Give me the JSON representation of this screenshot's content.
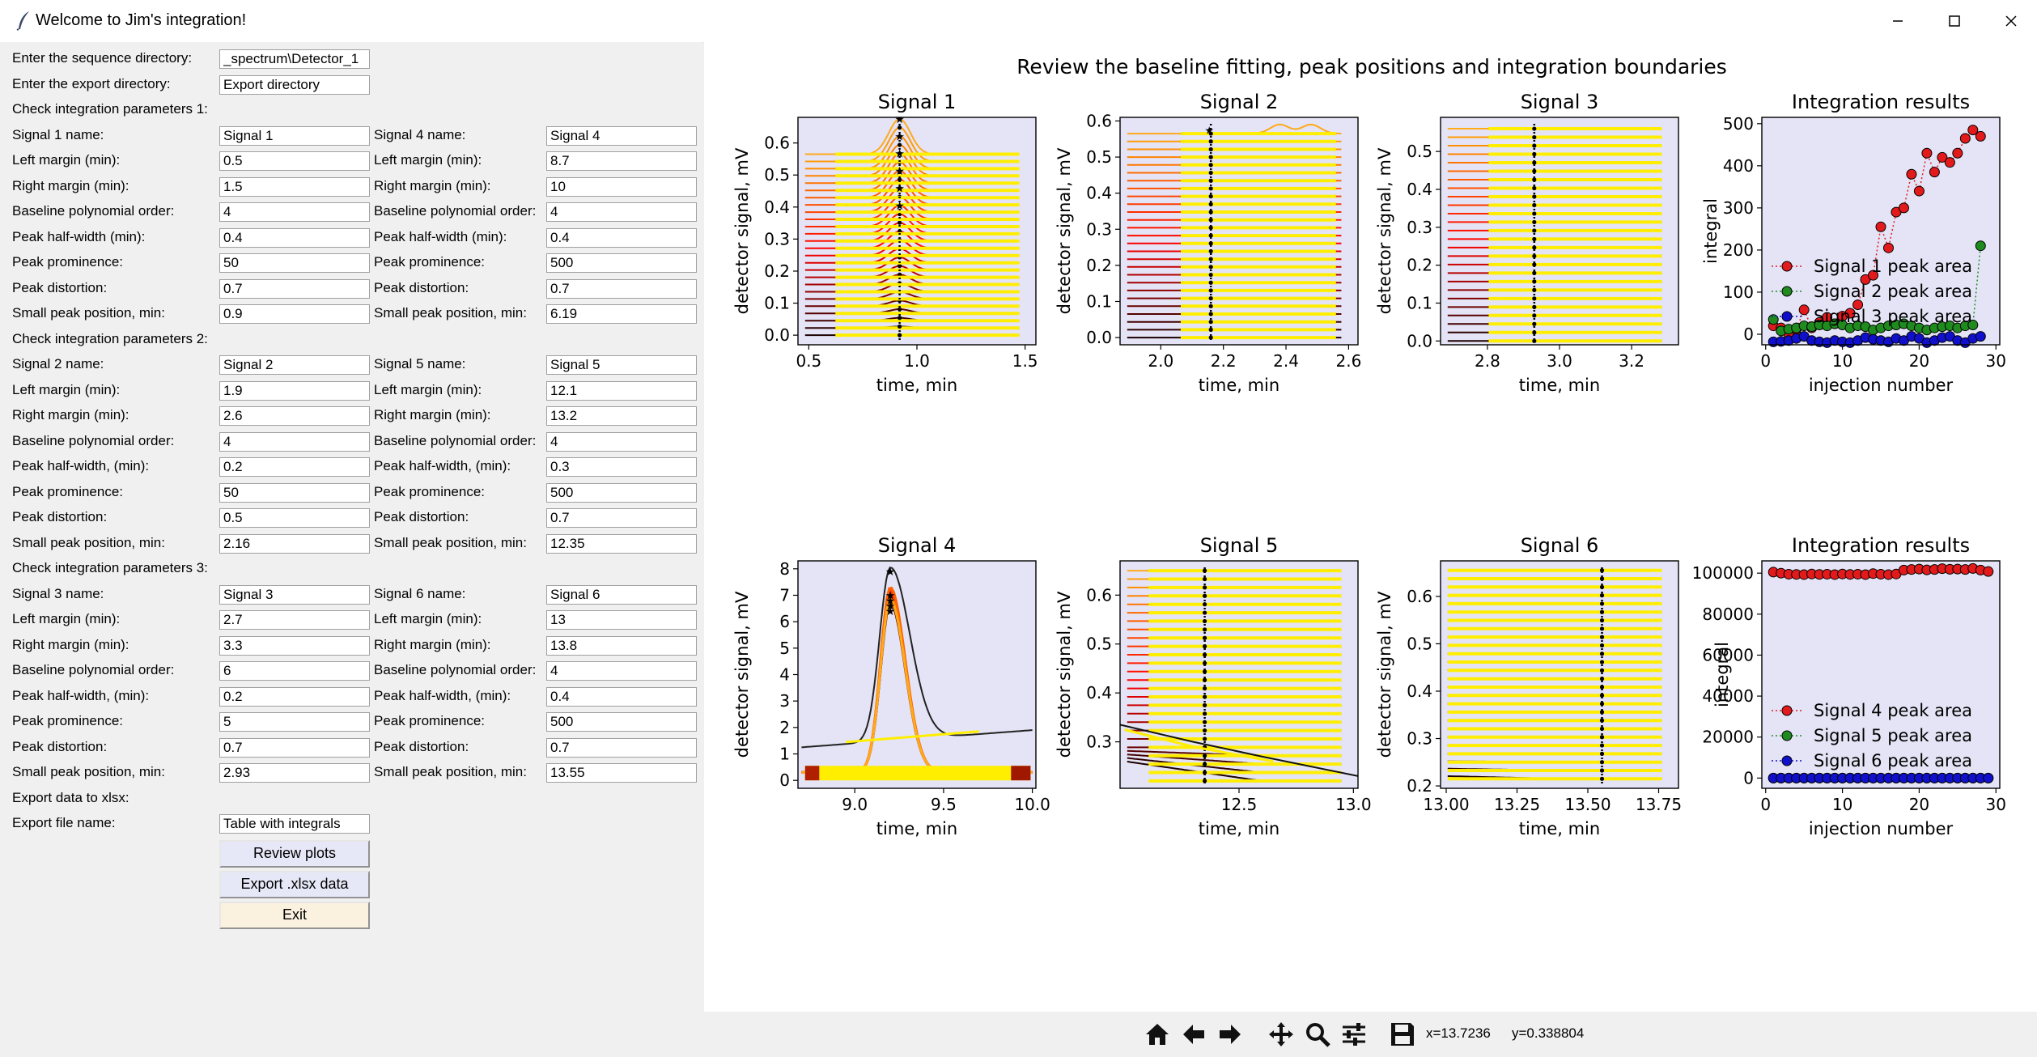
{
  "window": {
    "title": "Welcome to Jim's integration!"
  },
  "form": {
    "seq_dir": {
      "label": "Enter the sequence directory:",
      "value": "_spectrum\\Detector_1"
    },
    "export_dir": {
      "label": "Enter the export directory:",
      "value": "Export directory"
    },
    "sections": [
      {
        "header": "Check integration parameters 1:",
        "left": [
          {
            "label": "Signal 1 name:",
            "value": "Signal 1"
          },
          {
            "label": "Left margin (min):",
            "value": "0.5"
          },
          {
            "label": "Right margin (min):",
            "value": "1.5"
          },
          {
            "label": "Baseline polynomial order:",
            "value": "4"
          },
          {
            "label": "Peak half-width (min):",
            "value": "0.4"
          },
          {
            "label": "Peak prominence:",
            "value": "50"
          },
          {
            "label": "Peak distortion:",
            "value": "0.7"
          },
          {
            "label": "Small peak position, min:",
            "value": "0.9"
          }
        ],
        "right": [
          {
            "label": "Signal 4 name:",
            "value": "Signal 4"
          },
          {
            "label": "Left margin (min):",
            "value": "8.7"
          },
          {
            "label": "Right margin (min):",
            "value": "10"
          },
          {
            "label": "Baseline polynomial order:",
            "value": "4"
          },
          {
            "label": "Peak half-width (min):",
            "value": "0.4"
          },
          {
            "label": "Peak prominence:",
            "value": "500"
          },
          {
            "label": "Peak distortion:",
            "value": "0.7"
          },
          {
            "label": "Small peak position, min:",
            "value": "6.19"
          }
        ]
      },
      {
        "header": "Check integration parameters 2:",
        "left": [
          {
            "label": "Signal 2 name:",
            "value": "Signal 2"
          },
          {
            "label": "Left margin (min):",
            "value": "1.9"
          },
          {
            "label": "Right margin (min):",
            "value": "2.6"
          },
          {
            "label": "Baseline polynomial order:",
            "value": "4"
          },
          {
            "label": "Peak half-width, (min):",
            "value": "0.2"
          },
          {
            "label": "Peak prominence:",
            "value": "50"
          },
          {
            "label": "Peak distortion:",
            "value": "0.5"
          },
          {
            "label": "Small peak position, min:",
            "value": "2.16"
          }
        ],
        "right": [
          {
            "label": "Signal 5 name:",
            "value": "Signal 5"
          },
          {
            "label": "Left margin (min):",
            "value": "12.1"
          },
          {
            "label": "Right margin (min):",
            "value": "13.2"
          },
          {
            "label": "Baseline polynomial order:",
            "value": "4"
          },
          {
            "label": "Peak half-width, (min):",
            "value": "0.3"
          },
          {
            "label": "Peak prominence:",
            "value": "500"
          },
          {
            "label": "Peak distortion:",
            "value": "0.7"
          },
          {
            "label": "Small peak position, min:",
            "value": "12.35"
          }
        ]
      },
      {
        "header": "Check integration parameters 3:",
        "left": [
          {
            "label": "Signal 3 name:",
            "value": "Signal 3"
          },
          {
            "label": "Left margin (min):",
            "value": "2.7"
          },
          {
            "label": "Right margin (min):",
            "value": "3.3"
          },
          {
            "label": "Baseline polynomial order:",
            "value": "6"
          },
          {
            "label": "Peak half-width, (min):",
            "value": "0.2"
          },
          {
            "label": "Peak prominence:",
            "value": "5"
          },
          {
            "label": "Peak distortion:",
            "value": "0.7"
          },
          {
            "label": "Small peak position, min:",
            "value": "2.93"
          }
        ],
        "right": [
          {
            "label": "Signal 6 name:",
            "value": "Signal 6"
          },
          {
            "label": "Left margin (min):",
            "value": "13"
          },
          {
            "label": "Right margin (min):",
            "value": "13.8"
          },
          {
            "label": "Baseline polynomial order:",
            "value": "4"
          },
          {
            "label": "Peak half-width, (min):",
            "value": "0.4"
          },
          {
            "label": "Peak prominence:",
            "value": "500"
          },
          {
            "label": "Peak distortion:",
            "value": "0.7"
          },
          {
            "label": "Small peak position, min:",
            "value": "13.55"
          }
        ]
      }
    ],
    "export_header": "Export data to xlsx:",
    "export_file": {
      "label": "Export file name:",
      "value": "Table with integrals"
    },
    "buttons": {
      "review": "Review plots",
      "export": "Export .xlsx data",
      "exit": "Exit"
    }
  },
  "figure": {
    "suptitle": "Review the baseline fitting, peak positions and integration boundaries"
  },
  "toolbar": {
    "x_readout": "x=13.7236",
    "y_readout": "y=0.338804"
  },
  "colors": {
    "axes_bg": "#e4e4f6",
    "baseline": "#ffee00",
    "series_red": "#e31a1c",
    "series_green": "#1f8b1f",
    "series_blue": "#1010cc",
    "panel_bg": "#f0f0f0"
  },
  "chart_data": [
    {
      "type": "line",
      "title": "Signal 1",
      "xlabel": "time, min",
      "ylabel": "detector signal, mV",
      "xlim": [
        0.45,
        1.55
      ],
      "ylim": [
        -0.03,
        0.68
      ],
      "xticks": [
        "0.5",
        "1.0",
        "1.5"
      ],
      "yticks": [
        "0.0",
        "0.1",
        "0.2",
        "0.3",
        "0.4",
        "0.5",
        "0.6"
      ],
      "traces": 26,
      "offset_min": 0.0,
      "offset_max": 0.565,
      "peak_x": 0.92,
      "peak_heights_max": 0.11,
      "peak_width": 0.05,
      "integration_bounds": [
        0.62,
        1.5
      ]
    },
    {
      "type": "line",
      "title": "Signal 2",
      "xlabel": "time, min",
      "ylabel": "detector signal, mV",
      "xlim": [
        1.87,
        2.63
      ],
      "ylim": [
        -0.02,
        0.61
      ],
      "xticks": [
        "2.0",
        "2.2",
        "2.4",
        "2.6"
      ],
      "yticks": [
        "0.0",
        "0.1",
        "0.2",
        "0.3",
        "0.4",
        "0.5",
        "0.6"
      ],
      "traces": 27,
      "offset_min": 0.0,
      "offset_max": 0.565,
      "peak_x": 2.16,
      "peak_heights_max": 0.015,
      "peak_width": 0.02,
      "integration_bounds": [
        2.06,
        2.56
      ]
    },
    {
      "type": "line",
      "title": "Signal 3",
      "xlabel": "time, min",
      "ylabel": "detector signal, mV",
      "xlim": [
        2.67,
        3.33
      ],
      "ylim": [
        -0.01,
        0.59
      ],
      "xticks": [
        "2.8",
        "3.0",
        "3.2"
      ],
      "yticks": [
        "0.0",
        "0.1",
        "0.2",
        "0.3",
        "0.4",
        "0.5"
      ],
      "traces": 26,
      "offset_min": 0.0,
      "offset_max": 0.56,
      "peak_x": 2.93,
      "peak_heights_max": 0.003,
      "peak_width": 0.02,
      "integration_bounds": [
        2.8,
        3.3
      ]
    },
    {
      "type": "scatter",
      "title": "Integration results",
      "xlabel": "injection number",
      "ylabel": "integral",
      "xlim": [
        -0.5,
        30.5
      ],
      "ylim": [
        -25,
        515
      ],
      "xticks": [
        "0",
        "10",
        "20",
        "30"
      ],
      "yticks": [
        "0",
        "100",
        "200",
        "300",
        "400",
        "500"
      ],
      "series": [
        {
          "name": "Signal 1 peak area",
          "values": [
            20,
            15,
            0,
            12,
            58,
            15,
            28,
            40,
            25,
            43,
            50,
            70,
            130,
            140,
            255,
            205,
            290,
            300,
            380,
            340,
            430,
            385,
            420,
            408,
            430,
            465,
            485,
            470
          ]
        },
        {
          "name": "Signal 2 peak area",
          "values": [
            35,
            8,
            12,
            15,
            20,
            18,
            22,
            20,
            25,
            22,
            15,
            20,
            18,
            10,
            15,
            20,
            22,
            25,
            20,
            15,
            10,
            15,
            18,
            20,
            15,
            20,
            22,
            210
          ]
        },
        {
          "name": "Signal 3 peak area",
          "values": [
            -18,
            -17,
            -15,
            -10,
            -5,
            -15,
            -18,
            -20,
            -15,
            -18,
            -20,
            -15,
            -8,
            -12,
            -15,
            -18,
            -10,
            -15,
            -5,
            -10,
            -20,
            -15,
            -8,
            -5,
            -15,
            -20,
            -10,
            -5
          ]
        }
      ]
    },
    {
      "type": "line",
      "title": "Signal 4",
      "xlabel": "time, min",
      "ylabel": "detector signal, mV",
      "xlim": [
        8.68,
        10.02
      ],
      "ylim": [
        -0.3,
        8.3
      ],
      "xticks": [
        "9.0",
        "9.5",
        "10.0"
      ],
      "yticks": [
        "0",
        "1",
        "2",
        "3",
        "4",
        "5",
        "6",
        "7",
        "8"
      ],
      "traces": 10,
      "peak_x": 9.2,
      "peak_heights": [
        6.4,
        6.5,
        6.6,
        6.7,
        6.8,
        6.9,
        7.0,
        6.6,
        6.5
      ],
      "tall_trace_peak": 7.9,
      "integration_bounds": [
        8.7,
        10.0
      ]
    },
    {
      "type": "line",
      "title": "Signal 5",
      "xlabel": "time, min",
      "ylabel": "detector signal, mV",
      "xlim": [
        11.98,
        13.02
      ],
      "ylim": [
        0.205,
        0.67
      ],
      "xticks": [
        "12.5",
        "13.0"
      ],
      "yticks": [
        "0.3",
        "0.4",
        "0.5",
        "0.6"
      ],
      "traces": 26,
      "offset_min": 0.22,
      "offset_max": 0.65,
      "peak_x": 12.35,
      "integration_bounds": [
        12.1,
        13.0
      ]
    },
    {
      "type": "line",
      "title": "Signal 6",
      "xlabel": "time, min",
      "ylabel": "detector signal, mV",
      "xlim": [
        12.98,
        13.82
      ],
      "ylim": [
        0.195,
        0.675
      ],
      "xticks": [
        "13.00",
        "13.25",
        "13.50",
        "13.75"
      ],
      "yticks": [
        "0.2",
        "0.3",
        "0.4",
        "0.5",
        "0.6"
      ],
      "traces": 26,
      "offset_min": 0.215,
      "offset_max": 0.655,
      "peak_x": 13.55,
      "integration_bounds": [
        13.0,
        13.8
      ]
    },
    {
      "type": "scatter",
      "title": "Integration results",
      "xlabel": "injection number",
      "ylabel": "integral",
      "xlim": [
        -0.5,
        30.5
      ],
      "ylim": [
        -5000,
        106000
      ],
      "xticks": [
        "0",
        "10",
        "20",
        "30"
      ],
      "yticks": [
        "0",
        "20000",
        "40000",
        "60000",
        "80000",
        "100000"
      ],
      "series": [
        {
          "name": "Signal 4 peak area",
          "values": [
            100500,
            100000,
            99500,
            99400,
            99300,
            99600,
            99400,
            99500,
            99300,
            99600,
            99400,
            99500,
            99300,
            99800,
            99500,
            99300,
            99600,
            101500,
            101800,
            102000,
            101600,
            101800,
            102200,
            101900,
            102000,
            101800,
            102300,
            101500,
            100800
          ]
        },
        {
          "name": "Signal 5 peak area",
          "values": [
            0,
            0,
            0,
            0,
            0,
            0,
            0,
            0,
            0,
            0,
            0,
            0,
            0,
            0,
            0,
            0,
            0,
            0,
            0,
            0,
            0,
            0,
            0,
            0,
            0,
            0,
            0,
            0,
            0
          ]
        },
        {
          "name": "Signal 6 peak area",
          "values": [
            0,
            0,
            0,
            0,
            0,
            0,
            0,
            0,
            0,
            0,
            0,
            0,
            0,
            0,
            0,
            0,
            0,
            0,
            0,
            0,
            0,
            0,
            0,
            0,
            0,
            0,
            0,
            0,
            0
          ]
        }
      ]
    }
  ]
}
